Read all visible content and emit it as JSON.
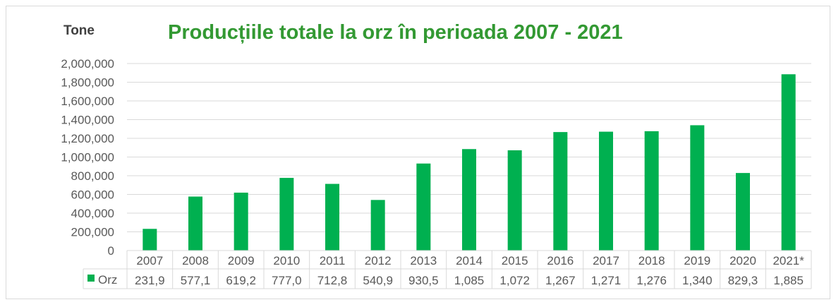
{
  "chart_data": {
    "type": "bar",
    "title": "Producțiile totale la orz în perioada 2007 - 2021",
    "ylabel": "Tone",
    "xlabel": "",
    "ylim": [
      0,
      2000000
    ],
    "yticks": [
      "0",
      "200,000",
      "400,000",
      "600,000",
      "800,000",
      "1,000,000",
      "1,200,000",
      "1,400,000",
      "1,600,000",
      "1,800,000",
      "2,000,000"
    ],
    "categories": [
      "2007",
      "2008",
      "2009",
      "2010",
      "2011",
      "2012",
      "2013",
      "2014",
      "2015",
      "2016",
      "2017",
      "2018",
      "2019",
      "2020",
      "2021*"
    ],
    "series": [
      {
        "name": "Orz",
        "color": "#00b050",
        "values": [
          231900,
          577100,
          619200,
          777000,
          712800,
          540900,
          930500,
          1085000,
          1072000,
          1267000,
          1271000,
          1276000,
          1340000,
          829300,
          1885000
        ],
        "table_labels": [
          "231,9",
          "577,1",
          "619,2",
          "777,0",
          "712,8",
          "540,9",
          "930,5",
          "1,085",
          "1,072",
          "1,267",
          "1,271",
          "1,276",
          "1,340",
          "829,3",
          "1,885"
        ]
      }
    ],
    "grid": true,
    "legend": "data-table"
  }
}
